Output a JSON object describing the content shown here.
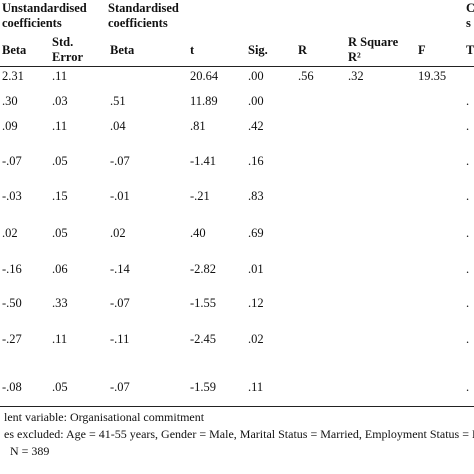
{
  "table": {
    "group_headers": [
      "Unstandardised coefficients",
      "Standardised coefficients",
      "C s"
    ],
    "column_headers": [
      "Beta",
      "Std. Error",
      "Beta",
      "t",
      "Sig.",
      "R",
      "R Square R²",
      "F",
      "T"
    ],
    "rows": [
      [
        "2.31",
        ".11",
        null,
        "20.64",
        ".00",
        ".56",
        ".32",
        "19.35",
        null
      ],
      [
        ".30",
        ".03",
        ".51",
        "11.89",
        ".00",
        null,
        null,
        null,
        "."
      ],
      [
        ".09",
        ".11",
        ".04",
        ".81",
        ".42",
        null,
        null,
        null,
        "."
      ],
      [
        "-.07",
        ".05",
        "-.07",
        "-1.41",
        ".16",
        null,
        null,
        null,
        "."
      ],
      [
        "-.03",
        ".15",
        "-.01",
        "-.21",
        ".83",
        null,
        null,
        null,
        "."
      ],
      [
        ".02",
        ".05",
        ".02",
        ".40",
        ".69",
        null,
        null,
        null,
        "."
      ],
      [
        "-.16",
        ".06",
        "-.14",
        "-2.82",
        ".01",
        null,
        null,
        null,
        "."
      ],
      [
        "-.50",
        ".33",
        "-.07",
        "-1.55",
        ".12",
        null,
        null,
        null,
        "."
      ],
      [
        "-.27",
        ".11",
        "-.11",
        "-2.45",
        ".02",
        null,
        null,
        null,
        "."
      ],
      [
        "-.08",
        ".05",
        "-.07",
        "-1.59",
        ".11",
        null,
        null,
        null,
        "."
      ]
    ]
  },
  "notes": [
    "lent variable: Organisational commitment",
    "es excluded: Age = 41-55 years, Gender = Male, Marital Status = Married, Employment Status = L",
    "N = 389"
  ]
}
